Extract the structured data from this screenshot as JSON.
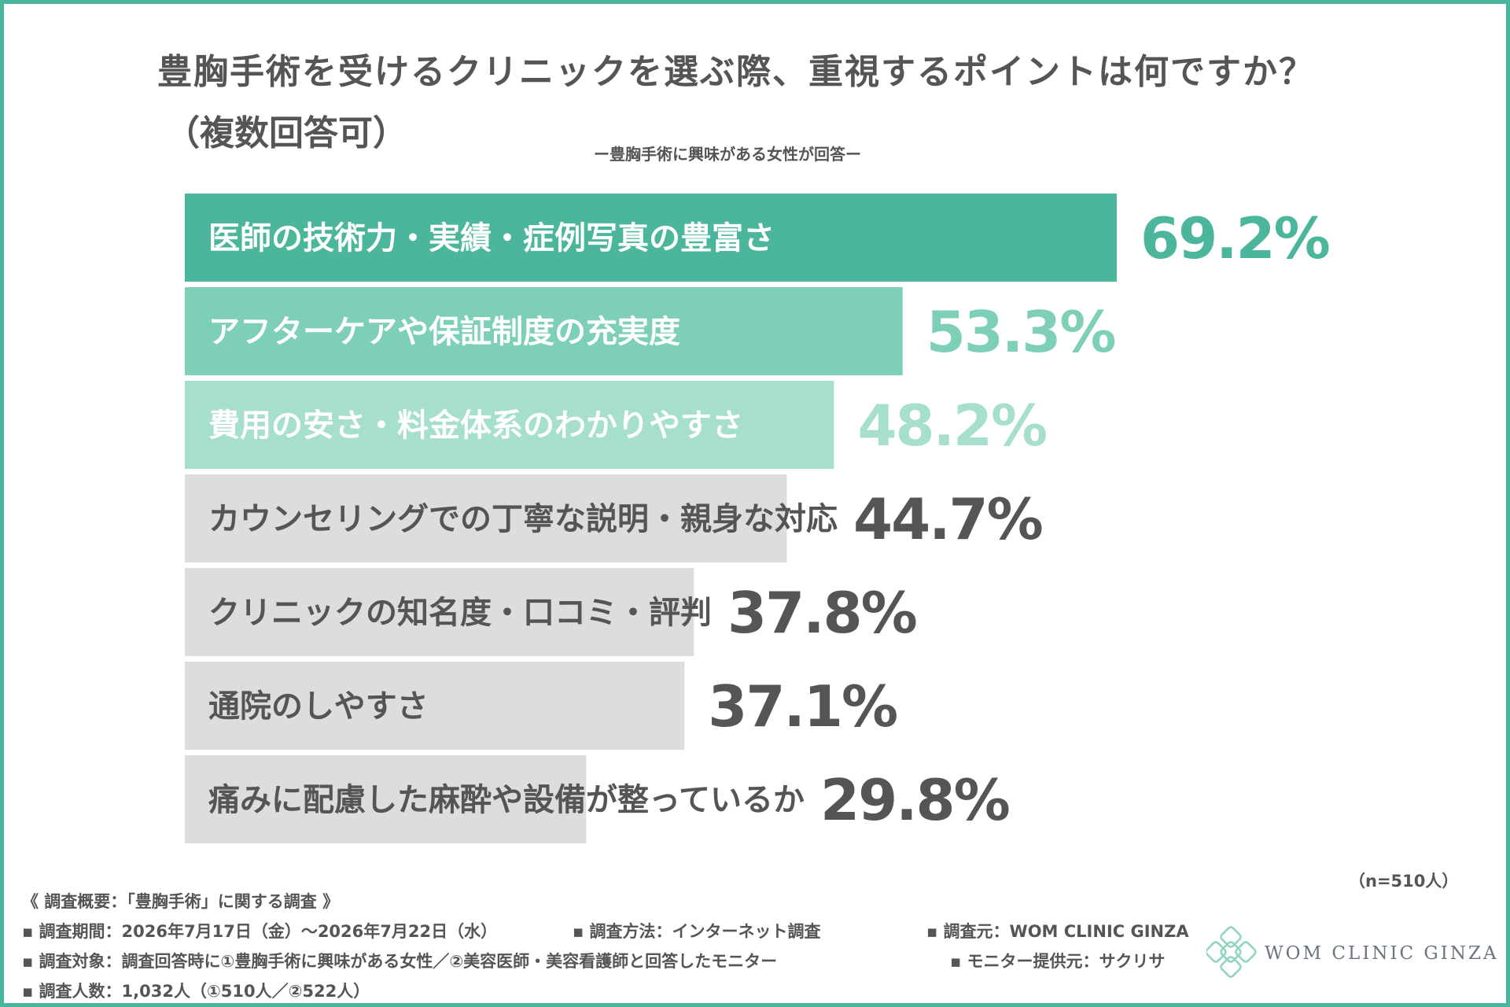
{
  "title": "豊胸手術を受けるクリニックを選ぶ際、重視するポイントは何ですか？",
  "title_note": "（複数回答可）",
  "subtitle": "ー豊胸手術に興味がある女性が回答ー",
  "n_label": "（n=510人）",
  "colors": {
    "accent": "#4bb69b",
    "accent_mid": "#7ecfb7",
    "accent_light": "#a7dfcf",
    "gray_bar": "#dddddd",
    "text_dark": "#555555"
  },
  "chart_data": {
    "type": "bar",
    "orientation": "horizontal",
    "categories": [
      "医師の技術力・実績・症例写真の豊富さ",
      "アフターケアや保証制度の充実度",
      "費用の安さ・料金体系のわかりやすさ",
      "カウンセリングでの丁寧な説明・親身な対応",
      "クリニックの知名度・口コミ・評判",
      "通院のしやすさ",
      "痛みに配慮した麻酔や設備が整っているか"
    ],
    "values": [
      69.2,
      53.3,
      48.2,
      44.7,
      37.8,
      37.1,
      29.8
    ],
    "value_labels": [
      "69.2%",
      "53.3%",
      "48.2%",
      "44.7%",
      "37.8%",
      "37.1%",
      "29.8%"
    ],
    "unit": "%",
    "bar_colors": [
      "#4bb69b",
      "#7ecfb7",
      "#a7dfcf",
      "#dddddd",
      "#dddddd",
      "#dddddd",
      "#dddddd"
    ],
    "label_colors": [
      "#ffffff",
      "#ffffff",
      "#ffffff",
      "#555555",
      "#555555",
      "#555555",
      "#555555"
    ],
    "value_colors": [
      "#4bb69b",
      "#7ecfb7",
      "#a7dfcf",
      "#555555",
      "#555555",
      "#555555",
      "#555555"
    ],
    "xlim": [
      0,
      100
    ],
    "grid": false,
    "legend": "none"
  },
  "footer": {
    "heading": "《 調査概要：「豊胸手術」に関する調査 》",
    "period": "▪ 調査期間：2026年7月17日（金）〜2026年7月22日（水）",
    "method": "▪ 調査方法：インターネット調査",
    "organizer": "▪ 調査元：WOM CLINIC GINZA",
    "target": "▪ 調査対象：調査回答時に①豊胸手術に興味がある女性／②美容医師・美容看護師と回答したモニター",
    "provider": "▪ モニター提供元：サクリサ",
    "count": "▪ 調査人数：1,032人（①510人／②522人）"
  },
  "logo": {
    "text": "WOM CLINIC GINZA",
    "icon": "diamond-lattice-icon"
  }
}
